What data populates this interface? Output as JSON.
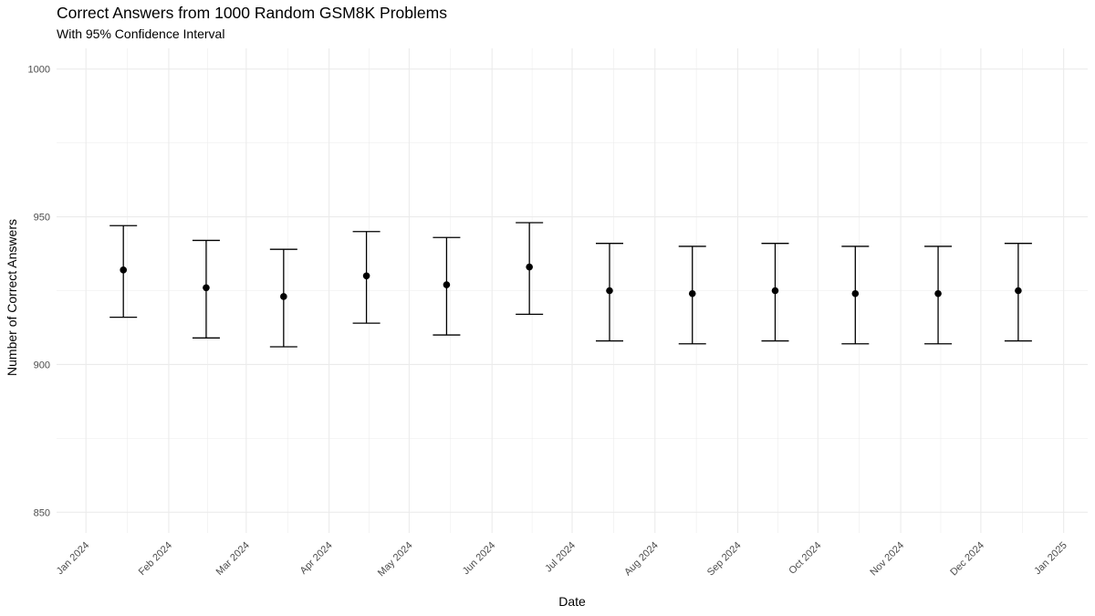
{
  "chart_data": {
    "type": "scatter",
    "title": "Correct Answers from 1000 Random GSM8K Problems",
    "subtitle": "With 95% Confidence Interval",
    "xlabel": "Date",
    "ylabel": "Number of Correct Answers",
    "ylim": [
      843,
      1007
    ],
    "xlim": [
      "2023-12-21",
      "2025-01-10"
    ],
    "grid": true,
    "y_ticks": [
      850,
      900,
      950,
      1000
    ],
    "x_ticks": [
      {
        "date": "2024-01-01",
        "label": "Jan 2024"
      },
      {
        "date": "2024-02-01",
        "label": "Feb 2024"
      },
      {
        "date": "2024-03-01",
        "label": "Mar 2024"
      },
      {
        "date": "2024-04-01",
        "label": "Apr 2024"
      },
      {
        "date": "2024-05-01",
        "label": "May 2024"
      },
      {
        "date": "2024-06-01",
        "label": "Jun 2024"
      },
      {
        "date": "2024-07-01",
        "label": "Jul 2024"
      },
      {
        "date": "2024-08-01",
        "label": "Aug 2024"
      },
      {
        "date": "2024-09-01",
        "label": "Sep 2024"
      },
      {
        "date": "2024-10-01",
        "label": "Oct 2024"
      },
      {
        "date": "2024-11-01",
        "label": "Nov 2024"
      },
      {
        "date": "2024-12-01",
        "label": "Dec 2024"
      },
      {
        "date": "2025-01-01",
        "label": "Jan 2025"
      }
    ],
    "points": [
      {
        "date": "2024-01-15",
        "y": 932,
        "lower": 916,
        "upper": 947
      },
      {
        "date": "2024-02-15",
        "y": 926,
        "lower": 909,
        "upper": 942
      },
      {
        "date": "2024-03-15",
        "y": 923,
        "lower": 906,
        "upper": 939
      },
      {
        "date": "2024-04-15",
        "y": 930,
        "lower": 914,
        "upper": 945
      },
      {
        "date": "2024-05-15",
        "y": 927,
        "lower": 910,
        "upper": 943
      },
      {
        "date": "2024-06-15",
        "y": 933,
        "lower": 917,
        "upper": 948
      },
      {
        "date": "2024-07-15",
        "y": 925,
        "lower": 908,
        "upper": 941
      },
      {
        "date": "2024-08-15",
        "y": 924,
        "lower": 907,
        "upper": 940
      },
      {
        "date": "2024-09-15",
        "y": 925,
        "lower": 908,
        "upper": 941
      },
      {
        "date": "2024-10-15",
        "y": 924,
        "lower": 907,
        "upper": 940
      },
      {
        "date": "2024-11-15",
        "y": 924,
        "lower": 907,
        "upper": 940
      },
      {
        "date": "2024-12-15",
        "y": 925,
        "lower": 908,
        "upper": 941
      }
    ],
    "colors": {
      "point": "#000000",
      "errorbar": "#000000",
      "grid": "#ebebeb"
    }
  }
}
